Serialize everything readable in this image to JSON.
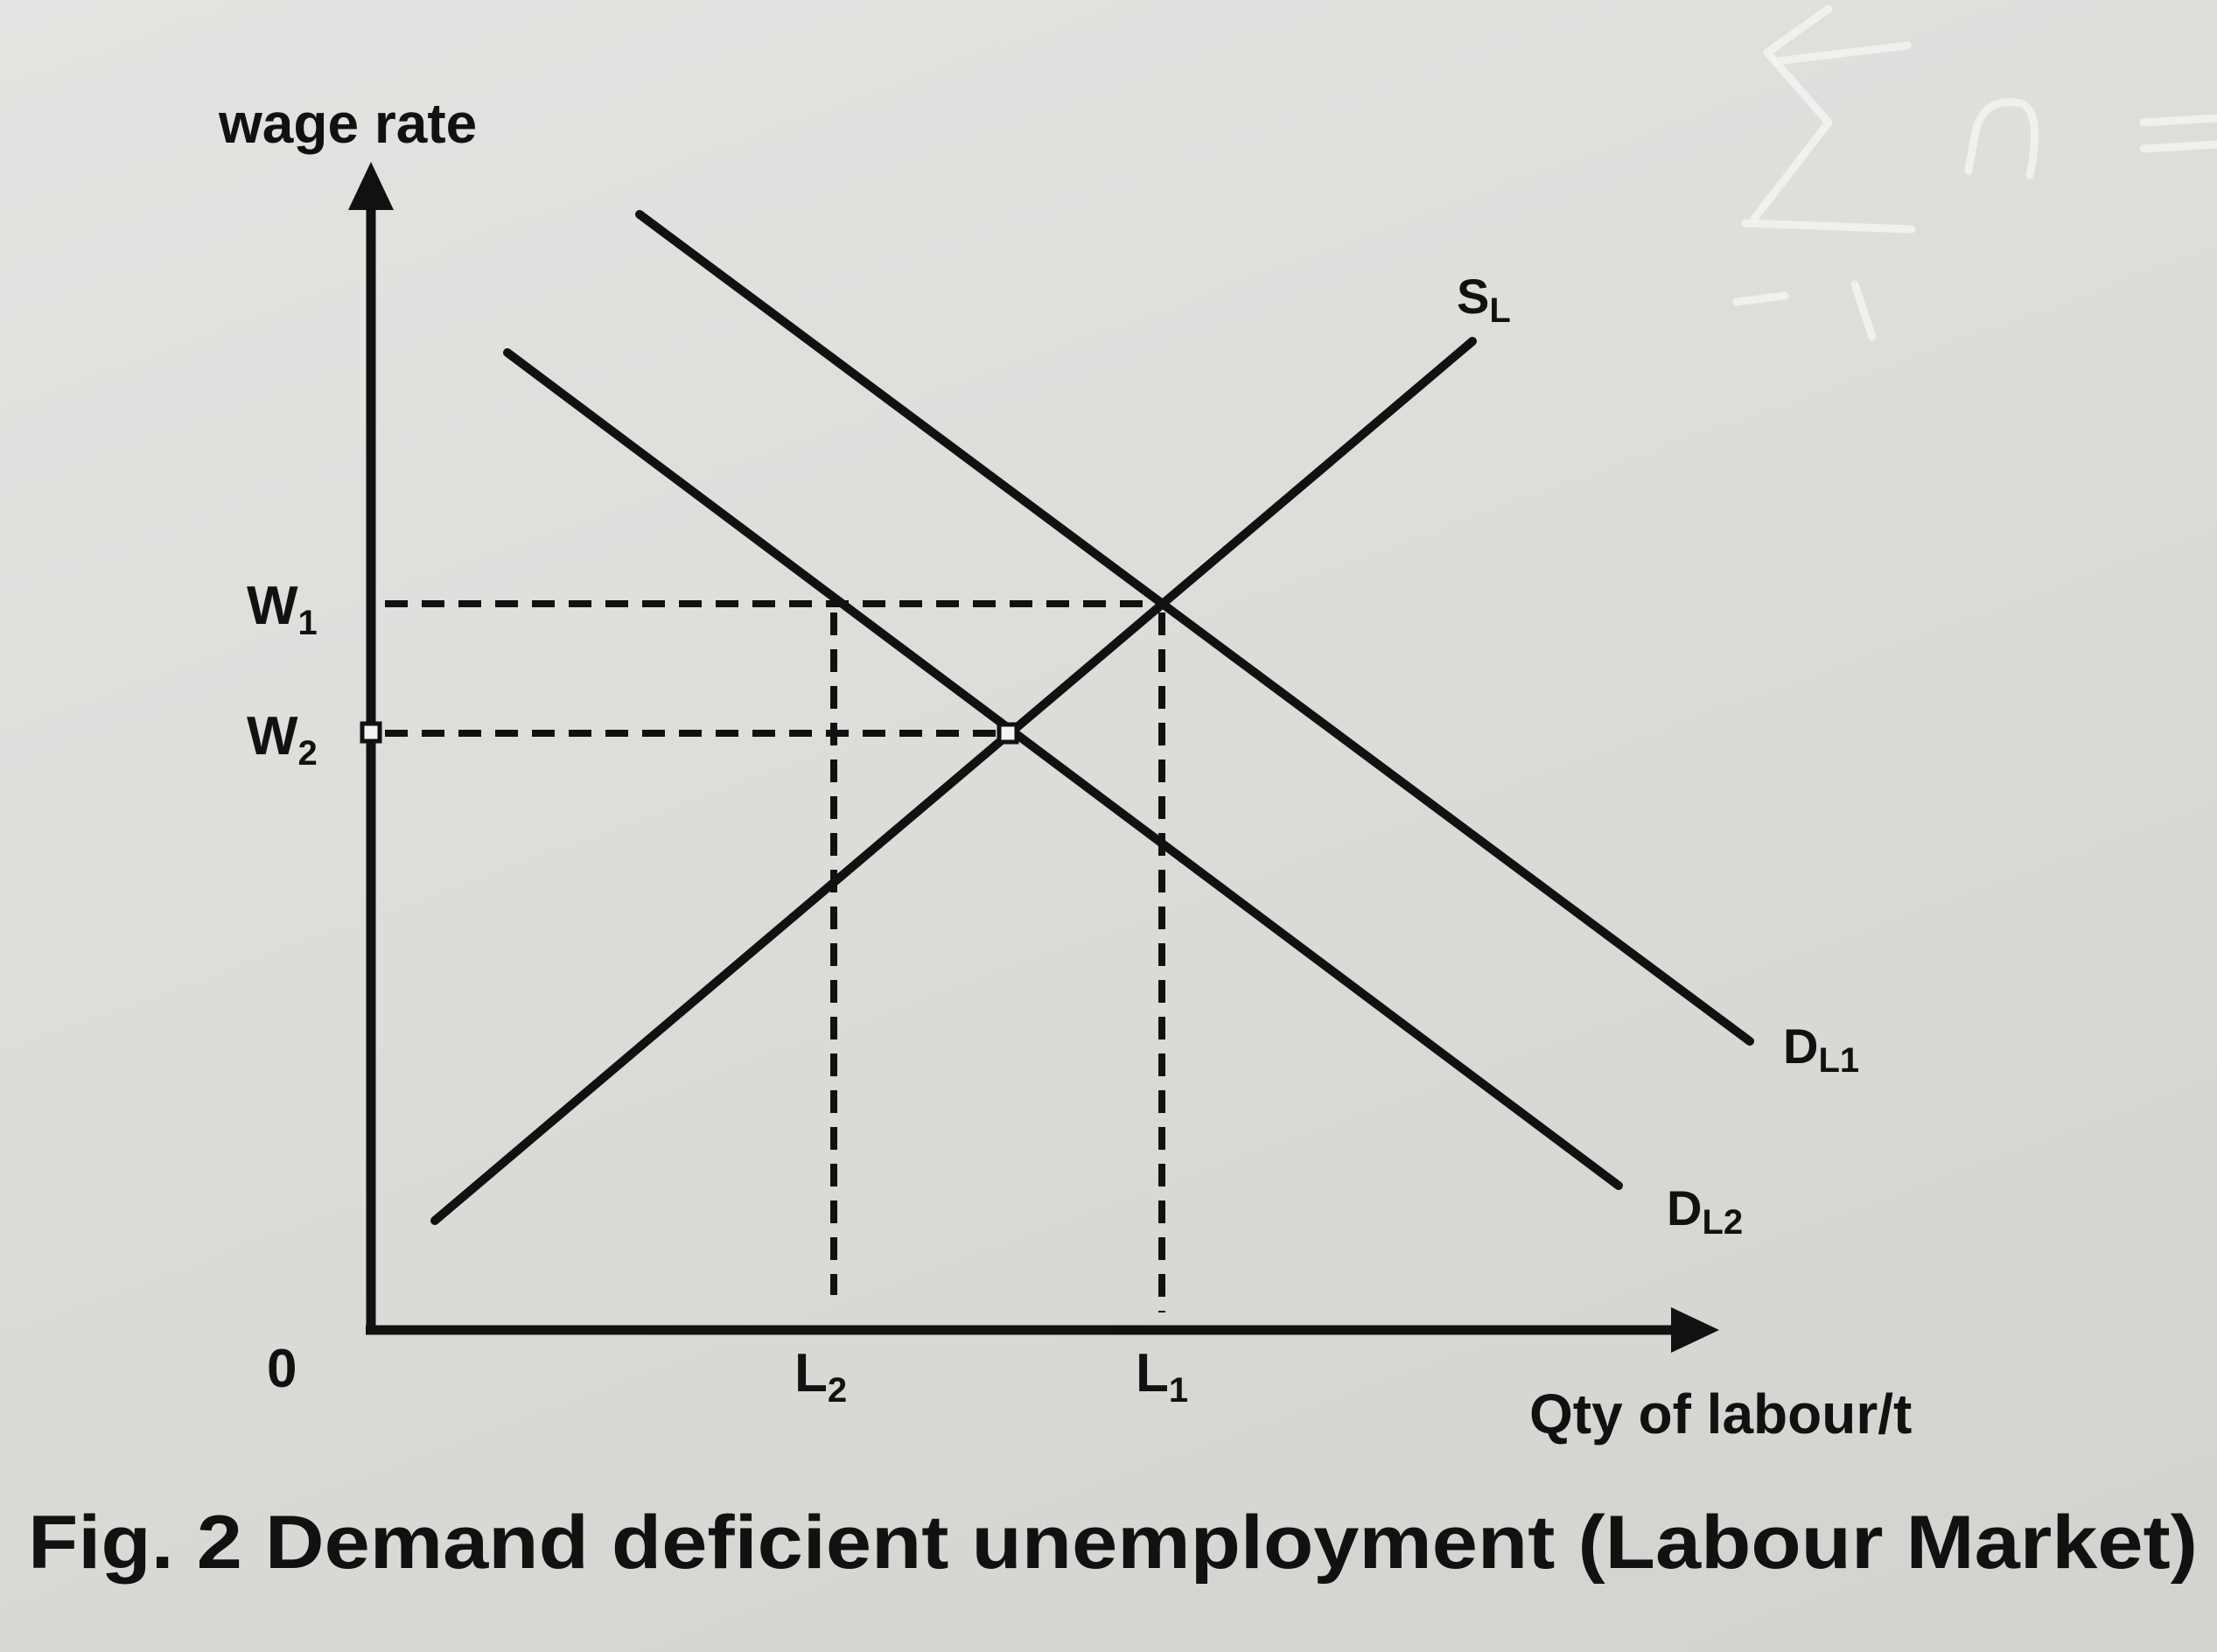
{
  "figure": {
    "caption": "Fig. 2 Demand deficient unemployment (Labour Market)",
    "y_axis_label": "wage rate",
    "x_axis_label": "Qty of labour/t",
    "origin_label": "0"
  },
  "axis_ticks": {
    "w1": {
      "main": "W",
      "sub": "1"
    },
    "w2": {
      "main": "W",
      "sub": "2"
    },
    "l1": {
      "main": "L",
      "sub": "1"
    },
    "l2": {
      "main": "L",
      "sub": "2"
    }
  },
  "curves": {
    "supply": {
      "main": "S",
      "sub": "L"
    },
    "demand1": {
      "main": "D",
      "sub": "L1"
    },
    "demand2": {
      "main": "D",
      "sub": "L2"
    }
  },
  "colors": {
    "ink": "#111111",
    "paper": "#dedfdb"
  }
}
